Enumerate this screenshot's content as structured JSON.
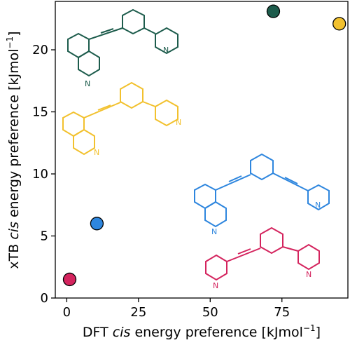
{
  "chart_data": {
    "type": "scatter",
    "xlabel_pre": "DFT ",
    "xlabel_em": "cis",
    "xlabel_post": " energy preference [kJmol",
    "xlabel_sup": "−1",
    "xlabel_close": "]",
    "ylabel_pre": "xTB ",
    "ylabel_em": "cis",
    "ylabel_post": " energy preference [kJmol",
    "ylabel_sup": "−1",
    "ylabel_close": "]",
    "xlim": [
      -4,
      98
    ],
    "ylim": [
      0,
      23.9
    ],
    "xticks": [
      {
        "value": 0,
        "label": "0"
      },
      {
        "value": 25,
        "label": "25"
      },
      {
        "value": 50,
        "label": "50"
      },
      {
        "value": 75,
        "label": "75"
      }
    ],
    "yticks": [
      {
        "value": 0,
        "label": "0"
      },
      {
        "value": 5,
        "label": "5"
      },
      {
        "value": 10,
        "label": "10"
      },
      {
        "value": 15,
        "label": "15"
      },
      {
        "value": 20,
        "label": "20"
      }
    ],
    "points": [
      {
        "x": 1.0,
        "y": 1.5,
        "color": "#d4245e"
      },
      {
        "x": 10.5,
        "y": 6.0,
        "color": "#2e86de"
      },
      {
        "x": 72.0,
        "y": 23.1,
        "color": "#1d5c4c"
      },
      {
        "x": 95.0,
        "y": 22.1,
        "color": "#f2c12e"
      }
    ],
    "grid": false
  },
  "molecules": [
    {
      "color": "#1d5c4c",
      "atom_label": "N",
      "atom_label_2": "N"
    },
    {
      "color": "#f2c12e",
      "atom_label": "N",
      "atom_label_2": "N"
    },
    {
      "color": "#2e86de",
      "atom_label": "N",
      "atom_label_2": "N"
    },
    {
      "color": "#d4245e",
      "atom_label": "N",
      "atom_label_2": "N"
    }
  ]
}
